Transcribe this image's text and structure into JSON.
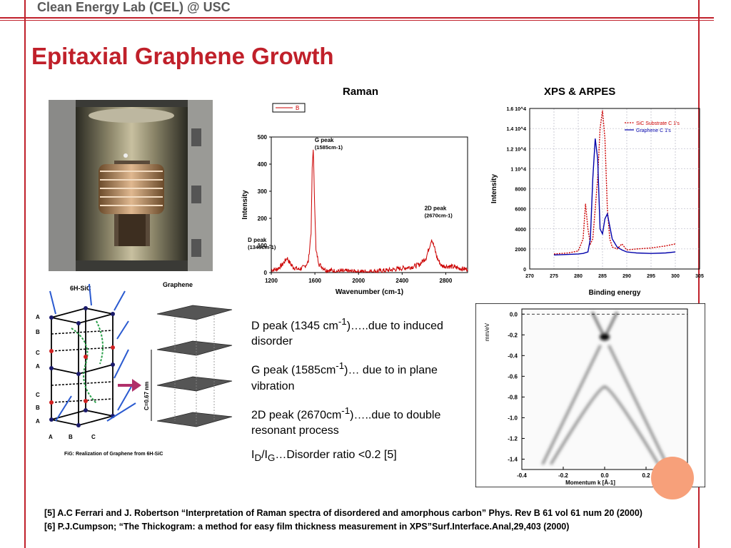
{
  "header": {
    "text": "Clean Energy Lab (CEL) @ USC"
  },
  "slide": {
    "title": "Epitaxial Graphene Growth"
  },
  "colors": {
    "accent": "#c0202a",
    "raman_line": "#cc0000",
    "graphene_line": "#0000aa"
  },
  "crystal": {
    "sic_label": "6H-SiC",
    "graphene_label": "Graphene",
    "layers": [
      "A",
      "B",
      "C",
      "A",
      "C",
      "B",
      "A"
    ],
    "bottom_labels": [
      "A",
      "B",
      "C"
    ],
    "thickness_label": "C=0.67 nm",
    "caption": "FiG: Realization of Graphene from 6H-SiC"
  },
  "notes": [
    {
      "prefix": "D peak (1345 cm",
      "sup": "-1",
      "suffix": ")…..due to  induced disorder"
    },
    {
      "prefix": "G peak (1585cm",
      "sup": "-1",
      "suffix": ")… due to in plane vibration"
    },
    {
      "prefix": "2D peak (2670cm",
      "sup": "-1",
      "suffix": ")…..due to double resonant process"
    }
  ],
  "ratio_note": {
    "i1": "I",
    "sub1": "D",
    "slash": "/I",
    "sub2": "G",
    "rest": "…Disorder ratio <0.2   [5]"
  },
  "references": [
    "[5] A.C Ferrari and J. Robertson “Interpretation of Raman spectra of disordered and amorphous carbon” Phys. Rev B 61 vol 61 num 20 (2000)",
    "[6] P.J.Cumpson; “The Thickogram: a method for easy film thickness measurement in XPS”Surf.Interface.Anal,29,403 (2000)"
  ],
  "chart_data": [
    {
      "type": "line",
      "title": "Raman",
      "xlabel": "Wavenumber (cm-1)",
      "ylabel": "Intensity",
      "xlim": [
        1200,
        3000
      ],
      "ylim": [
        0,
        500
      ],
      "xticks": [
        1200,
        1600,
        2000,
        2400,
        2800
      ],
      "yticks": [
        0,
        100,
        200,
        300,
        400,
        500
      ],
      "legend": "B",
      "series": [
        {
          "name": "B",
          "x": [
            1200,
            1250,
            1300,
            1330,
            1345,
            1360,
            1400,
            1450,
            1500,
            1540,
            1565,
            1575,
            1585,
            1595,
            1610,
            1640,
            1700,
            1800,
            1900,
            2000,
            2100,
            2200,
            2300,
            2400,
            2500,
            2560,
            2620,
            2650,
            2670,
            2690,
            2720,
            2760,
            2850,
            2950,
            3000
          ],
          "y": [
            10,
            12,
            28,
            45,
            55,
            42,
            20,
            12,
            20,
            40,
            150,
            380,
            460,
            300,
            80,
            30,
            10,
            5,
            5,
            3,
            4,
            6,
            10,
            16,
            22,
            30,
            55,
            95,
            125,
            100,
            55,
            25,
            22,
            14,
            12
          ]
        }
      ],
      "annotations": [
        {
          "text": "G peak",
          "sub": "(1585cm-1)",
          "x": 1585,
          "y": 460
        },
        {
          "text": "D peak",
          "sub": "(1345cm-1)",
          "x": 1345,
          "y": 55
        },
        {
          "text": "2D peak",
          "sub": "(2670cm-1)",
          "x": 2670,
          "y": 125
        }
      ]
    },
    {
      "type": "line",
      "title": "XPS & ARPES",
      "xlabel": "Binding energy",
      "ylabel": "Intensity",
      "xlim": [
        270,
        305
      ],
      "ylim": [
        0,
        16000
      ],
      "xticks": [
        270,
        275,
        280,
        285,
        290,
        295,
        300,
        305
      ],
      "yticks": [
        0,
        2000,
        4000,
        6000,
        8000,
        10000,
        12000,
        14000,
        16000
      ],
      "ytick_labels": [
        "0",
        "2000",
        "4000",
        "6000",
        "8000",
        "1 10^4",
        "1.2 10^4",
        "1.4 10^4",
        "1.6 10^4"
      ],
      "grid": true,
      "series": [
        {
          "name": "SiC Substrate C 1's",
          "style": "dotted",
          "x": [
            275,
            278,
            280,
            281,
            281.5,
            282,
            282.5,
            283,
            284,
            284.5,
            285,
            285.5,
            286,
            286.5,
            287,
            288,
            289,
            290,
            292,
            295,
            298,
            300
          ],
          "y": [
            1500,
            1600,
            1800,
            3000,
            6500,
            4000,
            2500,
            3000,
            9000,
            14000,
            15800,
            13000,
            6000,
            3000,
            2200,
            2000,
            2500,
            1900,
            2000,
            2100,
            2300,
            2500
          ]
        },
        {
          "name": "Graphene C 1's",
          "style": "solid",
          "x": [
            275,
            278,
            280,
            281,
            282,
            282.5,
            283,
            283.5,
            284,
            284.5,
            285,
            285.5,
            286,
            287,
            288,
            289,
            290,
            292,
            295,
            298,
            300
          ],
          "y": [
            1400,
            1450,
            1500,
            1550,
            1700,
            3000,
            9000,
            13000,
            11000,
            4000,
            3500,
            5000,
            5500,
            3000,
            2200,
            1900,
            1700,
            1600,
            1550,
            1600,
            1700
          ]
        }
      ]
    },
    {
      "type": "heatmap",
      "xlabel": "Momentum k [Å-1]",
      "ylabel": "mm/eV",
      "xlim": [
        -0.4,
        0.4
      ],
      "ylim": [
        -1.5,
        0.05
      ],
      "xticks": [
        -0.4,
        -0.2,
        0.0,
        0.2,
        0.4
      ],
      "yticks": [
        0.0,
        -0.2,
        -0.4,
        -0.6,
        -0.8,
        -1.0,
        -1.2,
        -1.4
      ],
      "fermi_level": 0.0
    }
  ]
}
